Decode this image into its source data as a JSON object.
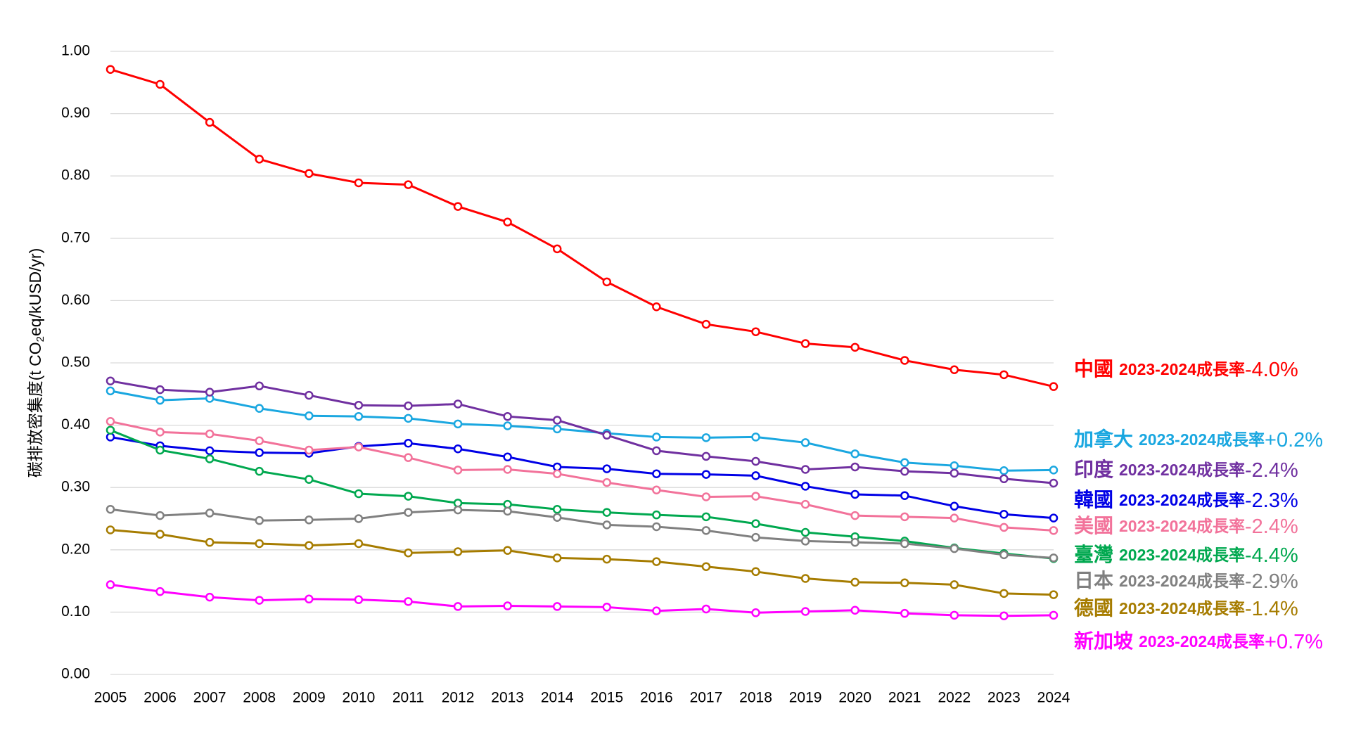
{
  "chart_data": {
    "type": "line",
    "ylabel": {
      "pre": "碳排放密集度(t CO",
      "sub": "2",
      "post": "eq/kUSD/yr)"
    },
    "growth_label": "2023-2024成長率",
    "x": [
      2005,
      2006,
      2007,
      2008,
      2009,
      2010,
      2011,
      2012,
      2013,
      2014,
      2015,
      2016,
      2017,
      2018,
      2019,
      2020,
      2021,
      2022,
      2023,
      2024
    ],
    "xlim": [
      2005,
      2024
    ],
    "ylim": [
      0,
      1
    ],
    "yticks": [
      {
        "value": 0,
        "label": "0.00"
      },
      {
        "value": 0.1,
        "label": "0.10"
      },
      {
        "value": 0.2,
        "label": "0.20"
      },
      {
        "value": 0.3,
        "label": "0.30"
      },
      {
        "value": 0.4,
        "label": "0.40"
      },
      {
        "value": 0.5,
        "label": "0.50"
      },
      {
        "value": 0.6,
        "label": "0.60"
      },
      {
        "value": 0.7,
        "label": "0.70"
      },
      {
        "value": 0.8,
        "label": "0.80"
      },
      {
        "value": 0.9,
        "label": "0.90"
      },
      {
        "value": 1,
        "label": "1.00"
      }
    ],
    "grid": true,
    "series": [
      {
        "name": "中國",
        "color": "#ff0000",
        "growth": "-4.0%",
        "values": [
          0.971,
          0.947,
          0.886,
          0.827,
          0.804,
          0.789,
          0.786,
          0.751,
          0.726,
          0.683,
          0.63,
          0.59,
          0.562,
          0.55,
          0.531,
          0.525,
          0.504,
          0.489,
          0.481,
          0.462
        ]
      },
      {
        "name": "加拿大",
        "color": "#1aa7e0",
        "growth": "+0.2%",
        "values": [
          0.455,
          0.44,
          0.443,
          0.427,
          0.415,
          0.414,
          0.411,
          0.402,
          0.399,
          0.394,
          0.387,
          0.381,
          0.38,
          0.381,
          0.372,
          0.354,
          0.34,
          0.335,
          0.327,
          0.328
        ]
      },
      {
        "name": "印度",
        "color": "#7030a0",
        "growth": "-2.4%",
        "values": [
          0.471,
          0.457,
          0.453,
          0.463,
          0.448,
          0.432,
          0.431,
          0.434,
          0.414,
          0.408,
          0.384,
          0.359,
          0.35,
          0.342,
          0.329,
          0.333,
          0.326,
          0.323,
          0.314,
          0.307
        ]
      },
      {
        "name": "韓國",
        "color": "#0000e6",
        "growth": "-2.3%",
        "values": [
          0.381,
          0.367,
          0.359,
          0.356,
          0.355,
          0.366,
          0.371,
          0.362,
          0.349,
          0.333,
          0.33,
          0.322,
          0.321,
          0.319,
          0.302,
          0.289,
          0.287,
          0.27,
          0.257,
          0.251
        ]
      },
      {
        "name": "美國",
        "color": "#f2729a",
        "growth": "-2.4%",
        "values": [
          0.406,
          0.389,
          0.386,
          0.375,
          0.36,
          0.365,
          0.348,
          0.328,
          0.329,
          0.322,
          0.308,
          0.296,
          0.285,
          0.286,
          0.273,
          0.255,
          0.253,
          0.251,
          0.236,
          0.231
        ]
      },
      {
        "name": "臺灣",
        "color": "#00a84f",
        "growth": "-4.4%",
        "values": [
          0.392,
          0.36,
          0.346,
          0.326,
          0.313,
          0.29,
          0.286,
          0.275,
          0.273,
          0.265,
          0.26,
          0.256,
          0.253,
          0.242,
          0.228,
          0.221,
          0.214,
          0.203,
          0.194,
          0.186
        ]
      },
      {
        "name": "日本",
        "color": "#808080",
        "growth": "-2.9%",
        "values": [
          0.265,
          0.255,
          0.259,
          0.247,
          0.248,
          0.25,
          0.26,
          0.264,
          0.262,
          0.252,
          0.24,
          0.237,
          0.231,
          0.22,
          0.214,
          0.212,
          0.21,
          0.202,
          0.192,
          0.187
        ]
      },
      {
        "name": "德國",
        "color": "#a67c00",
        "growth": "-1.4%",
        "values": [
          0.232,
          0.225,
          0.212,
          0.21,
          0.207,
          0.21,
          0.195,
          0.197,
          0.199,
          0.187,
          0.185,
          0.181,
          0.173,
          0.165,
          0.154,
          0.148,
          0.147,
          0.144,
          0.13,
          0.128
        ]
      },
      {
        "name": "新加坡",
        "color": "#ff00ff",
        "growth": "+0.7%",
        "values": [
          0.144,
          0.133,
          0.124,
          0.119,
          0.121,
          0.12,
          0.117,
          0.109,
          0.11,
          0.109,
          0.108,
          0.102,
          0.105,
          0.099,
          0.101,
          0.103,
          0.098,
          0.095,
          0.094,
          0.095
        ]
      }
    ]
  }
}
